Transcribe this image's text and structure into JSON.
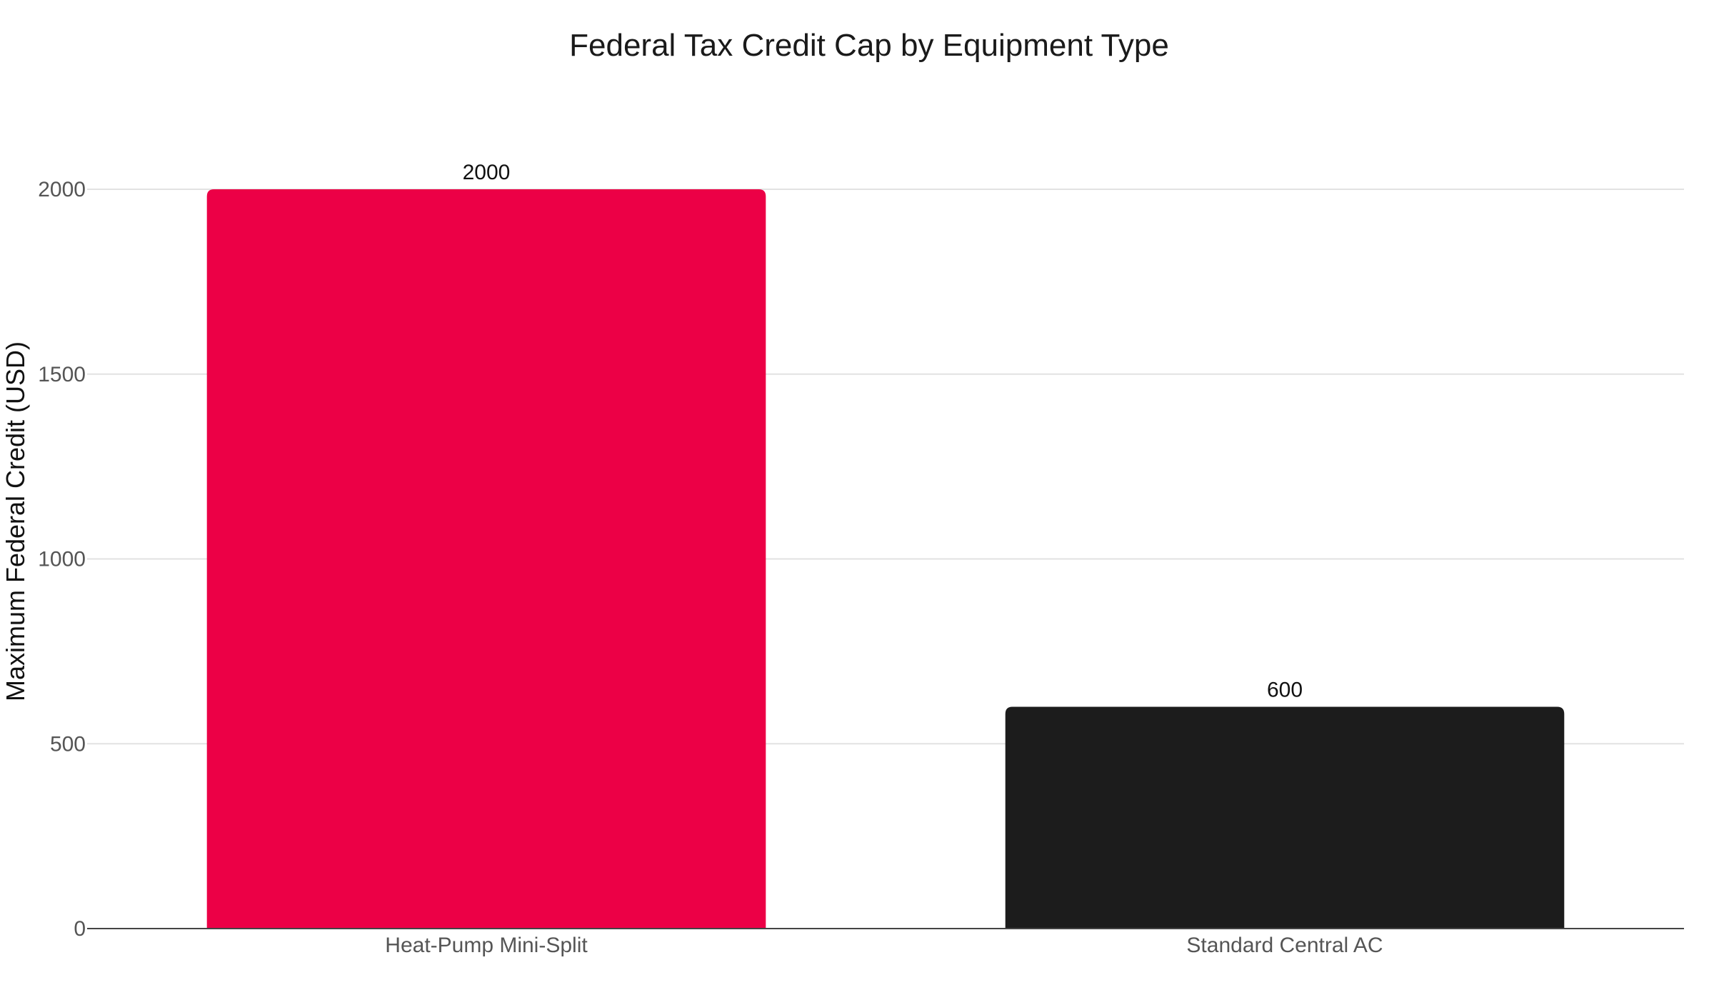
{
  "chart_data": {
    "type": "bar",
    "title": "Federal Tax Credit Cap by Equipment Type",
    "xlabel": "",
    "ylabel": "Maximum Federal Credit (USD)",
    "categories": [
      "Heat-Pump Mini-Split",
      "Standard Central AC"
    ],
    "values": [
      2000,
      600
    ],
    "data_labels": [
      "2000",
      "600"
    ],
    "colors": [
      "#ec0046",
      "#1c1c1c"
    ],
    "ylim": [
      0,
      2200
    ],
    "yticks": [
      0,
      500,
      1000,
      1500,
      2000
    ],
    "ytick_labels": [
      "0",
      "500",
      "1000",
      "1500",
      "2000"
    ],
    "grid": true,
    "legend": "none"
  }
}
